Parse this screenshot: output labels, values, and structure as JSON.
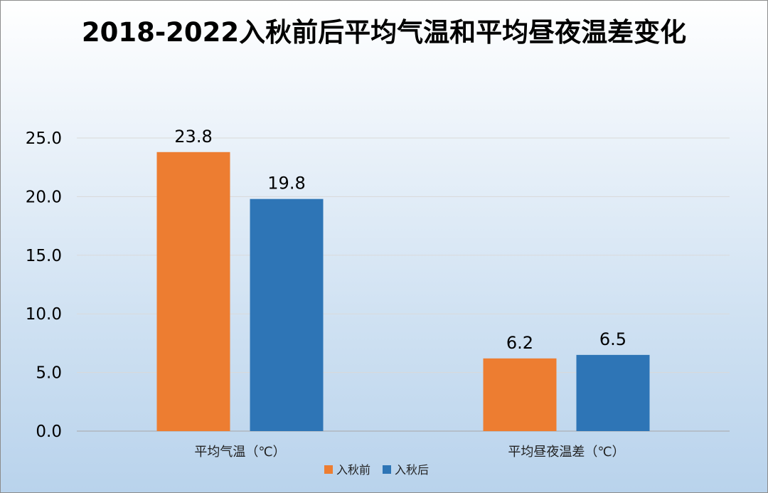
{
  "chart_data": {
    "type": "bar",
    "title": "2018-2022入秋前后平均气温和平均昼夜温差变化",
    "categories": [
      "平均气温（℃）",
      "平均昼夜温差（℃）"
    ],
    "series": [
      {
        "name": "入秋前",
        "values": [
          23.8,
          6.2
        ],
        "color": "#ed7d31"
      },
      {
        "name": "入秋后",
        "values": [
          19.8,
          6.5
        ],
        "color": "#2e75b6"
      }
    ],
    "value_labels": [
      [
        "23.8",
        "6.2"
      ],
      [
        "19.8",
        "6.5"
      ]
    ],
    "yticks": [
      "0.0",
      "5.0",
      "10.0",
      "15.0",
      "20.0",
      "25.0"
    ],
    "ylim": [
      0,
      25
    ],
    "grid": true,
    "legend_position": "bottom"
  }
}
